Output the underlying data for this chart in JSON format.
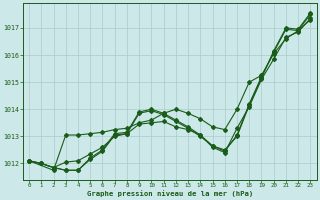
{
  "xlabel": "Graphe pression niveau de la mer (hPa)",
  "bg_color": "#cce8e8",
  "line_color": "#1a5c1a",
  "grid_color": "#aacaca",
  "xlim": [
    -0.5,
    23.5
  ],
  "ylim": [
    1011.4,
    1017.9
  ],
  "xticks": [
    0,
    1,
    2,
    3,
    4,
    5,
    6,
    7,
    8,
    9,
    10,
    11,
    12,
    13,
    14,
    15,
    16,
    17,
    18,
    19,
    20,
    21,
    22,
    23
  ],
  "yticks": [
    1012,
    1013,
    1014,
    1015,
    1016,
    1017
  ],
  "line1_x": [
    0,
    1,
    2,
    3,
    4,
    5,
    6,
    7,
    8,
    9,
    10,
    11,
    12,
    13,
    14,
    15,
    16,
    17,
    18,
    19,
    20,
    21,
    22,
    23
  ],
  "line1_y": [
    1012.1,
    1012.0,
    1011.85,
    1011.75,
    1011.75,
    1012.15,
    1012.45,
    1013.05,
    1013.1,
    1013.85,
    1013.95,
    1013.8,
    1013.55,
    1013.3,
    1013.0,
    1012.65,
    1012.5,
    1013.0,
    1014.15,
    1015.15,
    1016.15,
    1017.0,
    1016.95,
    1017.55
  ],
  "line2_x": [
    0,
    1,
    2,
    3,
    4,
    5,
    6,
    7,
    8,
    9,
    10,
    11,
    12,
    13,
    14,
    15,
    16,
    17,
    18,
    19,
    20,
    21,
    22,
    23
  ],
  "line2_y": [
    1012.1,
    1012.0,
    1011.85,
    1011.75,
    1011.75,
    1012.2,
    1012.5,
    1013.1,
    1013.15,
    1013.9,
    1014.0,
    1013.85,
    1013.6,
    1013.35,
    1013.05,
    1012.65,
    1012.45,
    1013.05,
    1014.2,
    1015.2,
    1016.1,
    1016.95,
    1016.9,
    1017.5
  ],
  "line3_x": [
    0,
    2,
    3,
    4,
    5,
    6,
    7,
    8,
    9,
    10,
    11,
    12,
    13,
    14,
    15,
    16,
    17,
    18,
    19,
    20,
    21,
    22,
    23
  ],
  "line3_y": [
    1012.1,
    1011.75,
    1013.05,
    1013.05,
    1013.1,
    1013.15,
    1013.25,
    1013.3,
    1013.5,
    1013.6,
    1013.85,
    1014.0,
    1013.85,
    1013.65,
    1013.35,
    1013.25,
    1014.0,
    1015.0,
    1015.25,
    1016.05,
    1016.6,
    1016.9,
    1017.3
  ],
  "line4_x": [
    0,
    1,
    2,
    3,
    4,
    5,
    6,
    7,
    8,
    9,
    10,
    11,
    12,
    13,
    14,
    15,
    16,
    17,
    18,
    19,
    20,
    21,
    22,
    23
  ],
  "line4_y": [
    1012.1,
    1012.0,
    1011.85,
    1012.05,
    1012.1,
    1012.35,
    1012.6,
    1013.0,
    1013.1,
    1013.45,
    1013.5,
    1013.55,
    1013.35,
    1013.25,
    1013.05,
    1012.6,
    1012.4,
    1013.3,
    1014.1,
    1015.1,
    1015.85,
    1016.65,
    1016.85,
    1017.35
  ]
}
